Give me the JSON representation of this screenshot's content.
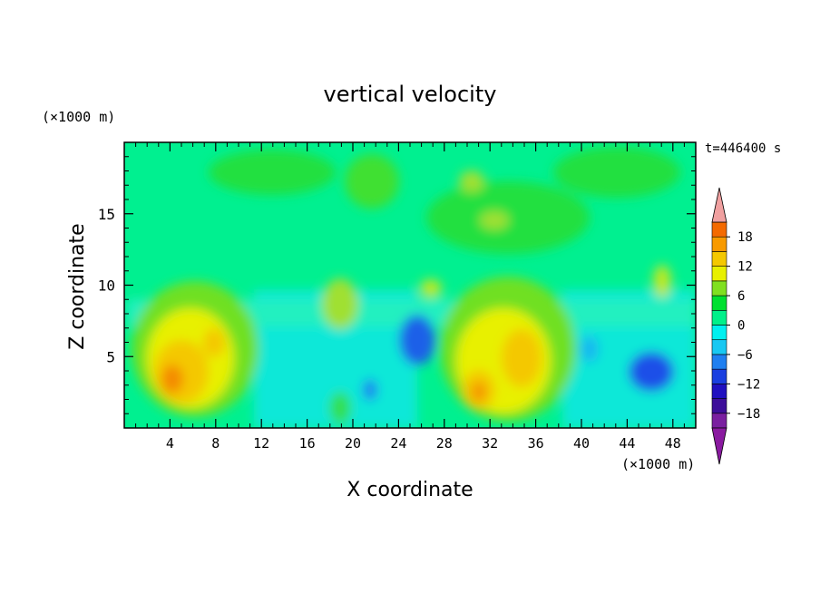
{
  "chart_data": {
    "type": "heatmap",
    "title": "vertical velocity",
    "xlabel": "X coordinate",
    "ylabel": "Z coordinate",
    "x_unit": "(×1000 m)",
    "y_unit": "(×1000 m)",
    "time_label": "t=446400 s",
    "xlim": [
      0,
      50
    ],
    "ylim": [
      0,
      20
    ],
    "x_ticks": [
      4,
      8,
      12,
      16,
      20,
      24,
      28,
      32,
      36,
      40,
      44,
      48
    ],
    "y_ticks": [
      5,
      10,
      15
    ],
    "x_tick_labels": [
      "4",
      "8",
      "12",
      "16",
      "20",
      "24",
      "28",
      "32",
      "36",
      "40",
      "44",
      "48"
    ],
    "y_tick_labels": [
      "5",
      "10",
      "15"
    ],
    "colorbar": {
      "levels": [
        -21,
        -18,
        -15,
        -12,
        -9,
        -6,
        -3,
        0,
        3,
        6,
        9,
        12,
        15,
        18,
        21
      ],
      "tick_values": [
        -18,
        -12,
        -6,
        0,
        6,
        12,
        18
      ],
      "tick_labels": [
        "−18",
        "−12",
        "−6",
        "0",
        "6",
        "12",
        "18"
      ],
      "colors": [
        "#7a1fa0",
        "#3d0e9a",
        "#2010c0",
        "#1a3fe0",
        "#1f7ff0",
        "#18c8f2",
        "#00f0f0",
        "#00f08a",
        "#00e030",
        "#80e020",
        "#e8f000",
        "#f4c800",
        "#f89a00",
        "#f46a00",
        "#ee2a00"
      ],
      "under_color": "#8a1aa0",
      "over_color": "#f0a0a0"
    },
    "grid": false,
    "legend": "colorbar-right"
  }
}
